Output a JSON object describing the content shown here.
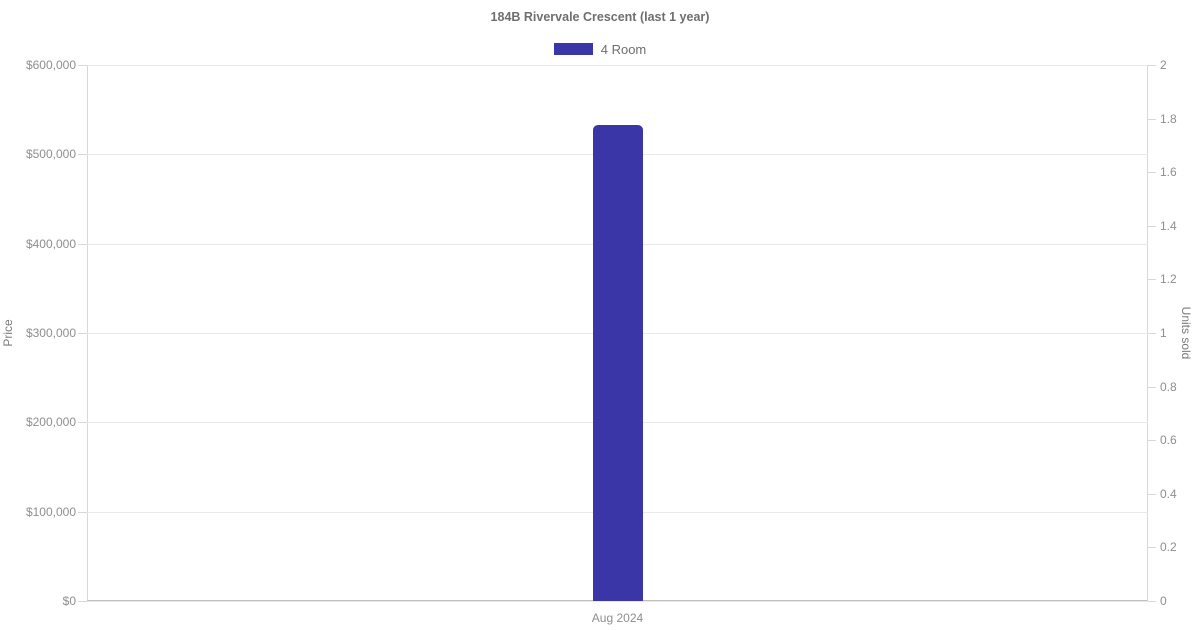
{
  "chart_data": {
    "type": "bar",
    "title": "184B Rivervale Crescent (last 1 year)",
    "categories": [
      "Aug 2024"
    ],
    "series": [
      {
        "name": "4 Room",
        "values": [
          533000
        ],
        "color": "#3b36a8",
        "yaxis": "left"
      }
    ],
    "left_axis": {
      "label": "Price",
      "min": 0,
      "max": 600000,
      "tick_step": 100000,
      "tick_format": "currency"
    },
    "right_axis": {
      "label": "Units sold",
      "min": 0,
      "max": 2,
      "tick_step": 0.2,
      "tick_format": "number"
    },
    "grid": true,
    "legend_position": "top",
    "background": "#ffffff"
  }
}
